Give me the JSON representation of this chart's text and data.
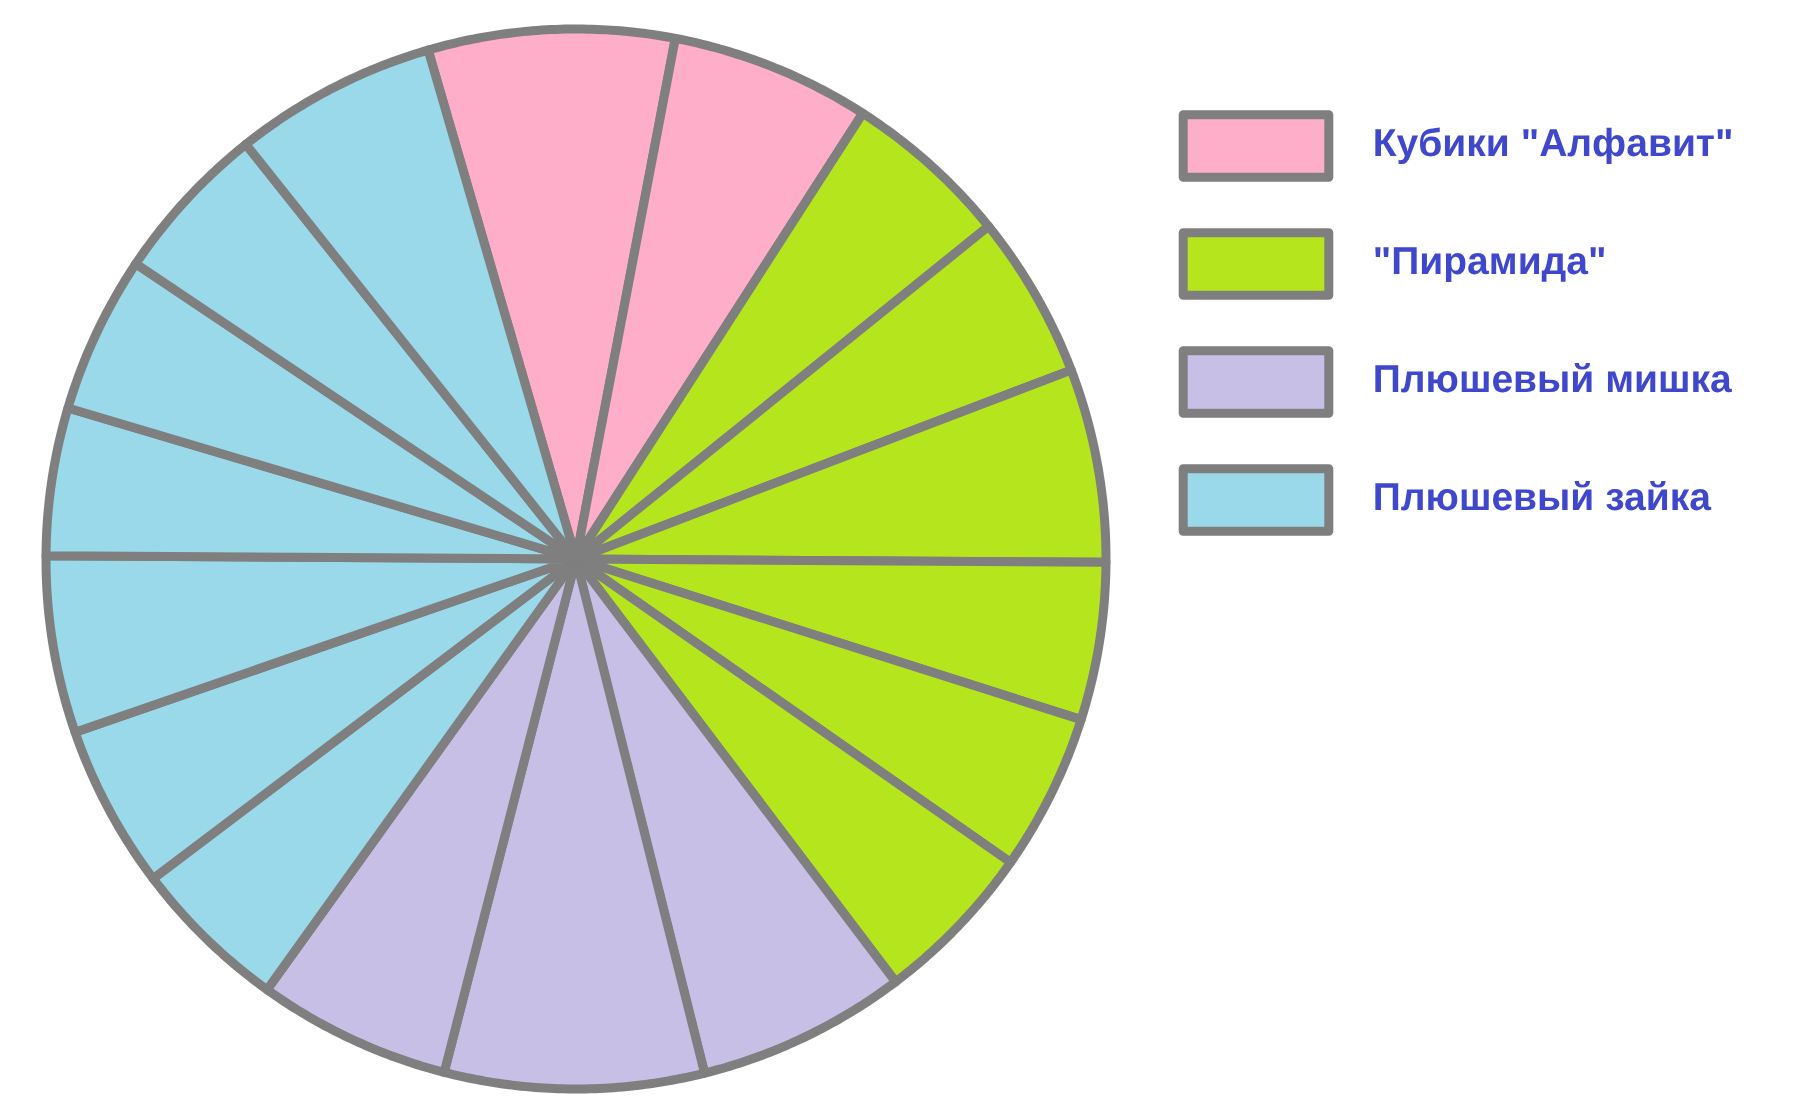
{
  "chart_data": {
    "type": "pie",
    "categories": [
      "Кубики \"Алфавит\"",
      null,
      "\"Пирамида\"",
      null,
      null,
      null,
      null,
      null,
      "Плюшевый мишка",
      null,
      null,
      "Плюшевый зайка",
      null,
      null,
      null,
      null,
      null,
      null
    ],
    "values": [
      7.5,
      6.1,
      5.1,
      5.0,
      5.9,
      4.8,
      4.8,
      5.0,
      6.4,
      7.9,
      5.9,
      4.8,
      5.0,
      5.4,
      4.5,
      4.8,
      4.9,
      6.2
    ],
    "colors": [
      "#ffaec9",
      "#ffaec9",
      "#b5e61d",
      "#b5e61d",
      "#b5e61d",
      "#b5e61d",
      "#b5e61d",
      "#b5e61d",
      "#c8bfe7",
      "#c8bfe7",
      "#c8bfe7",
      "#99d9ea",
      "#99d9ea",
      "#99d9ea",
      "#99d9ea",
      "#99d9ea",
      "#99d9ea",
      "#99d9ea"
    ],
    "legend": "right"
  }
}
